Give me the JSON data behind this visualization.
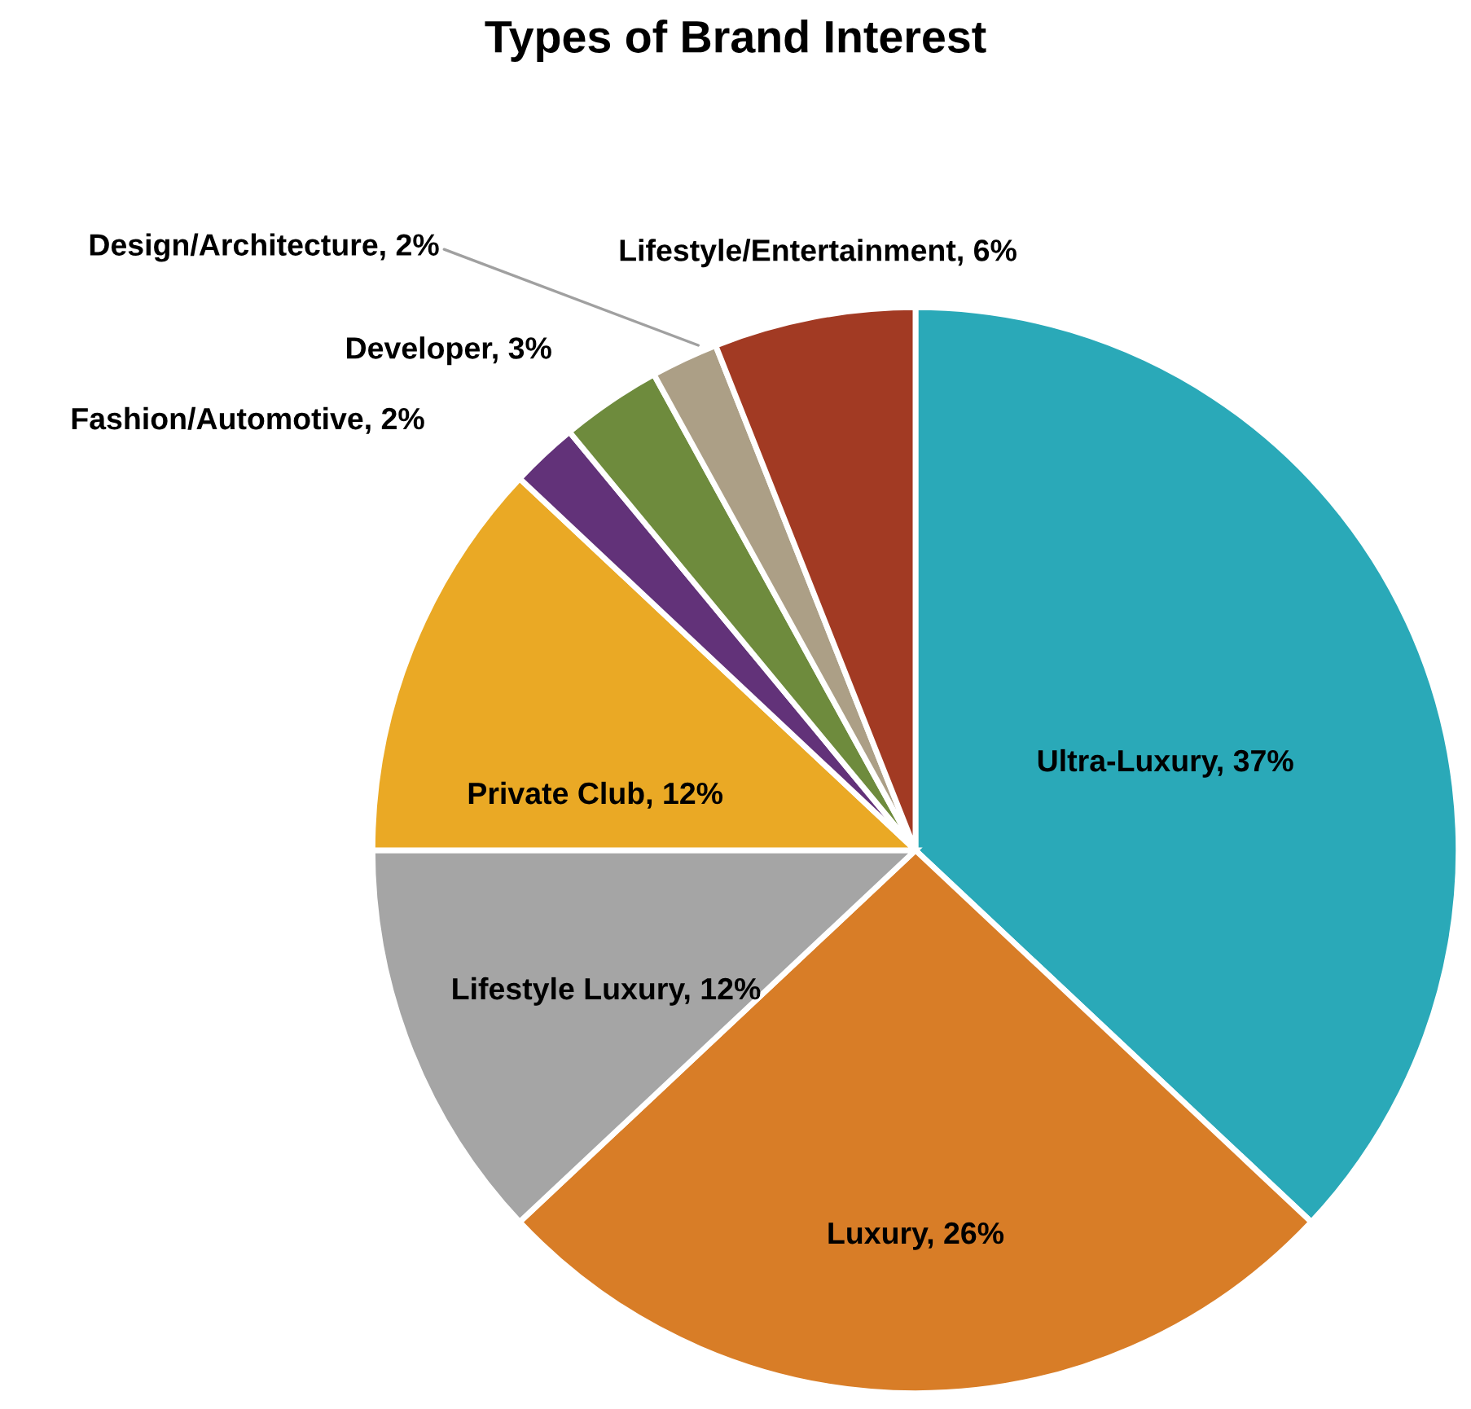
{
  "chart_data": {
    "type": "pie",
    "title": "Types of Brand Interest",
    "categories": [
      "Ultra-Luxury",
      "Luxury",
      "Lifestyle Luxury",
      "Private Club",
      "Fashion/Automotive",
      "Developer",
      "Design/Architecture",
      "Lifestyle/Entertainment"
    ],
    "values": [
      37,
      26,
      12,
      12,
      2,
      3,
      2,
      6
    ],
    "value_labels": [
      "37%",
      "26%",
      "12%",
      "12%",
      "2%",
      "3%",
      "2%",
      "6%"
    ],
    "colors": [
      "#2aa9b8",
      "#d87d27",
      "#a5a5a5",
      "#eaa925",
      "#623279",
      "#6e8b3d",
      "#ac9f86",
      "#a23a23"
    ],
    "legend": false
  }
}
